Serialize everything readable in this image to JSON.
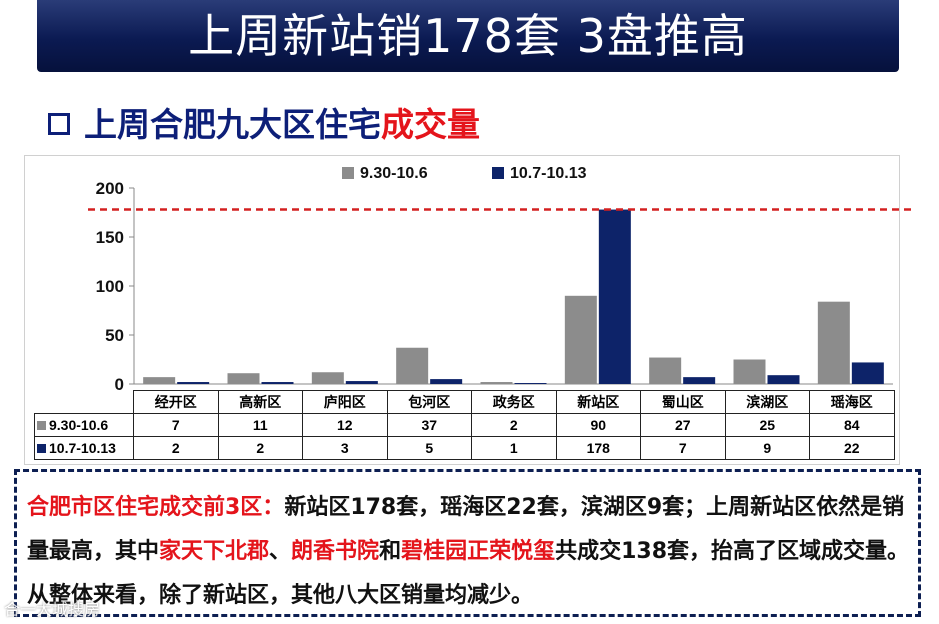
{
  "banner": {
    "title": "上周新站销178套 3盘推高"
  },
  "subtitle": {
    "text_main": "上周合肥九大区住宅",
    "text_highlight": "成交量"
  },
  "chart_data": {
    "type": "bar",
    "categories": [
      "经开区",
      "高新区",
      "庐阳区",
      "包河区",
      "政务区",
      "新站区",
      "蜀山区",
      "滨湖区",
      "瑶海区"
    ],
    "series": [
      {
        "name": "9.30-10.6",
        "color": "#8c8c8c",
        "values": [
          7,
          11,
          12,
          37,
          2,
          90,
          27,
          25,
          84
        ]
      },
      {
        "name": "10.7-10.13",
        "color": "#0d2369",
        "values": [
          2,
          2,
          3,
          5,
          1,
          178,
          7,
          9,
          22
        ]
      }
    ],
    "ylim": [
      0,
      200
    ],
    "yticks": [
      0,
      50,
      100,
      150,
      200
    ],
    "reference_line": {
      "value": 178,
      "color": "#d42020",
      "style": "dashed"
    },
    "legend": "top",
    "title": "",
    "xlabel": "",
    "ylabel": ""
  },
  "note": {
    "lead": "合肥市区住宅成交前3区：",
    "p1": "新站区178套，瑶海区22套，滨湖区9套；上周新站区依然是销量最高，其中",
    "h1": "家天下北郡",
    "sep1": "、",
    "h2": "朗香书院",
    "sep2": "和",
    "h3": "碧桂园正荣悦玺",
    "p2": "共成交138套，抬高了区域成交量。从整体来看，除了新站区，其他八大区销量均减少。"
  },
  "watermark": "合一大城搜房"
}
